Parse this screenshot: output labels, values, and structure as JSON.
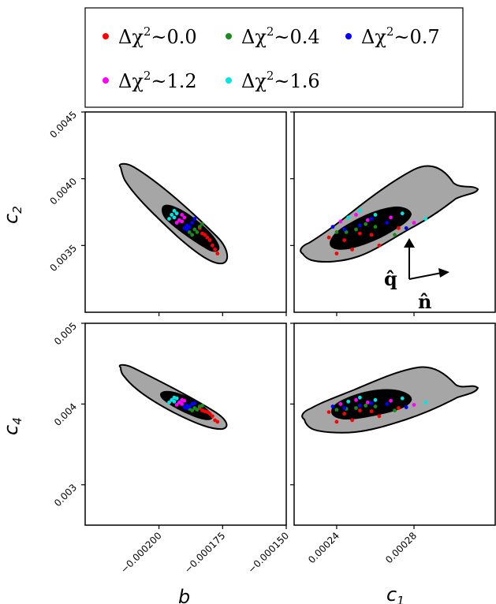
{
  "legend": {
    "items": [
      {
        "label": "Δχ²~0.0",
        "prefix": "Δχ",
        "sup": "2",
        "suffix": "~0.0",
        "color": "#ff0000"
      },
      {
        "label": "Δχ²~0.4",
        "prefix": "Δχ",
        "sup": "2",
        "suffix": "~0.4",
        "color": "#1a8a1a"
      },
      {
        "label": "Δχ²~0.7",
        "prefix": "Δχ",
        "sup": "2",
        "suffix": "~0.7",
        "color": "#0000ff"
      },
      {
        "label": "Δχ²~1.2",
        "prefix": "Δχ",
        "sup": "2",
        "suffix": "~1.2",
        "color": "#ff00ff"
      },
      {
        "label": "Δχ²~1.6",
        "prefix": "Δχ",
        "sup": "2",
        "suffix": "~1.6",
        "color": "#00e5e5"
      }
    ]
  },
  "colors": {
    "contour_outer": "#a6a6a6",
    "contour_inner": "#000000",
    "background": "#ffffff"
  },
  "axis_labels": {
    "x_left": {
      "main": "b",
      "sub": ""
    },
    "x_right": {
      "main": "c",
      "sub": "1"
    },
    "y_top": {
      "main": "c",
      "sub": "2"
    },
    "y_bottom": {
      "main": "c",
      "sub": "4"
    }
  },
  "vector_labels": {
    "q": "q̂",
    "n": "n̂"
  },
  "chart_data": {
    "type": "scatter",
    "subtype": "corner-plot",
    "panels": [
      {
        "id": "b-c2",
        "xvar": "b",
        "yvar": "c2"
      },
      {
        "id": "c1-c2",
        "xvar": "c1",
        "yvar": "c2"
      },
      {
        "id": "b-c4",
        "xvar": "b",
        "yvar": "c4"
      },
      {
        "id": "c1-c4",
        "xvar": "c1",
        "yvar": "c4"
      }
    ],
    "axes": {
      "b": {
        "lim": [
          -0.000229,
          -0.00015
        ],
        "ticks": [
          -0.0002,
          -0.000175,
          -0.00015
        ],
        "tick_labels": [
          "−0.000200",
          "−0.000175",
          "−0.000150"
        ]
      },
      "c1": {
        "lim": [
          0.000218,
          0.000322
        ],
        "ticks": [
          0.00024,
          0.00028
        ],
        "tick_labels": [
          "0.00024",
          "0.00028"
        ]
      },
      "c2": {
        "lim": [
          0.003,
          0.0045
        ],
        "ticks": [
          0.0035,
          0.004,
          0.0045
        ],
        "tick_labels": [
          "0.0035",
          "0.0040",
          "0.0045"
        ]
      },
      "c4": {
        "lim": [
          0.0025,
          0.005
        ],
        "ticks": [
          0.003,
          0.004,
          0.005
        ],
        "tick_labels": [
          "0.003",
          "0.004",
          "0.005"
        ]
      }
    },
    "series": [
      {
        "name": "Δχ²~0.0",
        "color": "#ff0000",
        "b": [
          -0.000181,
          -0.00018,
          -0.000183,
          -0.000179,
          -0.000184,
          -0.000178,
          -0.000182,
          -0.000177
        ],
        "c1": [
          0.000236,
          0.000244,
          0.000252,
          0.000262,
          0.000272,
          0.000248,
          0.000258,
          0.00024
        ],
        "c2": [
          0.00356,
          0.00354,
          0.00359,
          0.0035,
          0.00363,
          0.00347,
          0.00358,
          0.00344
        ],
        "c4": [
          0.0039,
          0.00388,
          0.00392,
          0.00385,
          0.00395,
          0.0038,
          0.00391,
          0.00378
        ]
      },
      {
        "name": "Δχ²~0.4",
        "color": "#1a8a1a",
        "b": [
          -0.000185,
          -0.000186,
          -0.000184,
          -0.000187,
          -0.000183,
          -0.000188
        ],
        "c1": [
          0.00024,
          0.00025,
          0.00026,
          0.00027,
          0.000255,
          0.000245
        ],
        "c2": [
          0.0036,
          0.00362,
          0.00364,
          0.00358,
          0.00366,
          0.0036
        ],
        "c4": [
          0.00393,
          0.00395,
          0.00397,
          0.00392,
          0.00398,
          0.00394
        ]
      },
      {
        "name": "Δχ²~0.7",
        "color": "#0000ff",
        "b": [
          -0.000188,
          -0.000189,
          -0.000187,
          -0.00019,
          -0.000186,
          -0.000189
        ],
        "c1": [
          0.000238,
          0.000252,
          0.000266,
          0.000276,
          0.000258,
          0.000244
        ],
        "c2": [
          0.00364,
          0.00365,
          0.00367,
          0.00363,
          0.0037,
          0.00362
        ],
        "c4": [
          0.00397,
          0.00398,
          0.004,
          0.00396,
          0.00401,
          0.00395
        ]
      },
      {
        "name": "Δχ²~1.2",
        "color": "#ff00ff",
        "b": [
          -0.000191,
          -0.000192,
          -0.00019,
          -0.000193,
          -0.000191
        ],
        "c1": [
          0.000242,
          0.000256,
          0.000268,
          0.00028,
          0.00025
        ],
        "c2": [
          0.00368,
          0.00369,
          0.00371,
          0.00367,
          0.00373
        ],
        "c4": [
          0.004,
          0.00402,
          0.00404,
          0.00399,
          0.00405
        ]
      },
      {
        "name": "Δχ²~1.6",
        "color": "#00e5e5",
        "b": [
          -0.000194,
          -0.000195,
          -0.000193,
          -0.000196,
          -0.000194
        ],
        "c1": [
          0.000246,
          0.00026,
          0.000274,
          0.000286,
          0.000252
        ],
        "c2": [
          0.00371,
          0.00373,
          0.00374,
          0.0037,
          0.00376
        ],
        "c4": [
          0.00403,
          0.00405,
          0.00407,
          0.00402,
          0.00408
        ]
      }
    ],
    "grid": false,
    "legend_position": "top"
  }
}
